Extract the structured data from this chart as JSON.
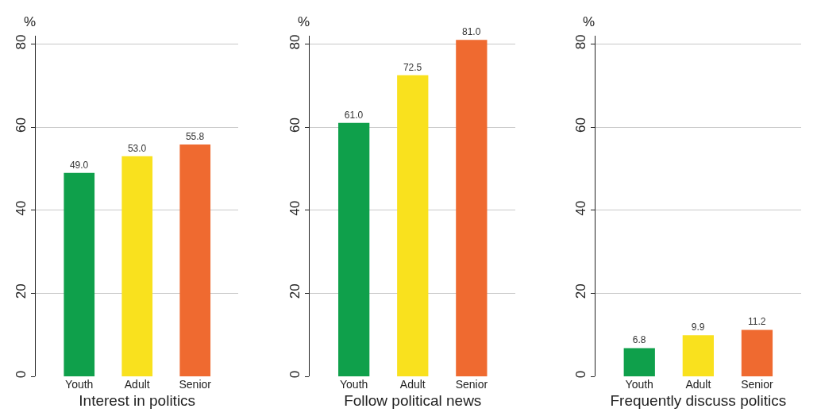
{
  "chart_data": [
    {
      "type": "bar",
      "xlabel": "Interest in politics",
      "ylabel": "%",
      "categories": [
        "Youth",
        "Adult",
        "Senior"
      ],
      "values": [
        49.0,
        53.0,
        55.8
      ],
      "colors": [
        "#0fa04b",
        "#f9e11e",
        "#ef6a30"
      ],
      "value_labels": [
        "49.0",
        "53.0",
        "55.8"
      ],
      "ylim": [
        0,
        82
      ],
      "yticks": [
        0,
        20,
        40,
        60,
        80
      ],
      "grid": "y"
    },
    {
      "type": "bar",
      "xlabel": "Follow political news",
      "ylabel": "%",
      "categories": [
        "Youth",
        "Adult",
        "Senior"
      ],
      "values": [
        61.0,
        72.5,
        81.0
      ],
      "colors": [
        "#0fa04b",
        "#f9e11e",
        "#ef6a30"
      ],
      "value_labels": [
        "61.0",
        "72.5",
        "81.0"
      ],
      "ylim": [
        0,
        82
      ],
      "yticks": [
        0,
        20,
        40,
        60,
        80
      ],
      "grid": "y"
    },
    {
      "type": "bar",
      "xlabel": "Frequently discuss politics",
      "ylabel": "%",
      "categories": [
        "Youth",
        "Adult",
        "Senior"
      ],
      "values": [
        6.8,
        9.9,
        11.2
      ],
      "colors": [
        "#0fa04b",
        "#f9e11e",
        "#ef6a30"
      ],
      "value_labels": [
        "6.8",
        "9.9",
        "11.2"
      ],
      "ylim": [
        0,
        82
      ],
      "yticks": [
        0,
        20,
        40,
        60,
        80
      ],
      "grid": "y"
    }
  ]
}
